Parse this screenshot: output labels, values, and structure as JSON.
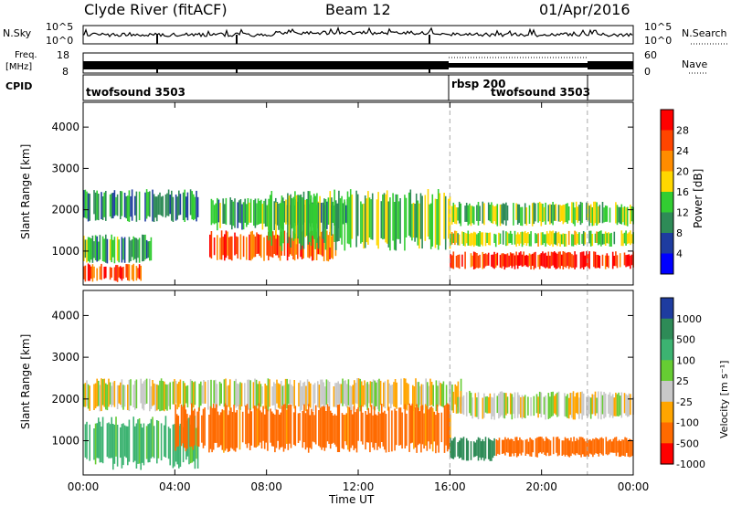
{
  "header": {
    "station": "Clyde River (fitACF)",
    "beam": "Beam 12",
    "date": "01/Apr/2016"
  },
  "panels": {
    "nsky": {
      "label": "N.Sky",
      "left_ticks": [
        "10^5",
        "10^0"
      ],
      "right_ticks": [
        "10^5",
        "10^0"
      ],
      "right_label": "N.Search"
    },
    "freq": {
      "label_line1": "Freq.",
      "label_line2": "[MHz]",
      "left_ticks": [
        "18",
        "8"
      ],
      "right_ticks": [
        "60",
        "0"
      ],
      "right_label": "Nave"
    },
    "cpid": {
      "label": "CPID",
      "modes": [
        "twofsound 3503",
        "rbsp 200",
        "twofsound 3503"
      ]
    }
  },
  "chart_data": [
    {
      "type": "heatmap",
      "title": "",
      "xlabel": "Time UT",
      "ylabel": "Slant Range [km]",
      "x_ticks": [
        "00:00",
        "04:00",
        "08:00",
        "12:00",
        "16:00",
        "20:00",
        "00:00"
      ],
      "xlim_hours": [
        0,
        24
      ],
      "y_ticks": [
        1000,
        2000,
        3000,
        4000
      ],
      "ylim_km": [
        180,
        4600
      ],
      "colorbar_label": "Power [dB]",
      "colorbar_ticks": [
        "28",
        "24",
        "20",
        "16",
        "12",
        "8",
        "4"
      ],
      "colors": [
        "#0000ff",
        "#1e3ca0",
        "#2e8b57",
        "#32cd32",
        "#ffd700",
        "#ff8c00",
        "#ff4500",
        "#ff0000"
      ],
      "mode_change_hours": [
        16,
        22
      ],
      "scatter_regions": [
        {
          "t0": 0.0,
          "t1": 5.0,
          "r0": 1700,
          "r1": 2500,
          "value": 10
        },
        {
          "t0": 0.0,
          "t1": 3.0,
          "r0": 700,
          "r1": 1400,
          "value": 12
        },
        {
          "t0": 0.0,
          "t1": 2.5,
          "r0": 250,
          "r1": 700,
          "value": 27
        },
        {
          "t0": 5.5,
          "t1": 11.5,
          "r0": 1500,
          "r1": 2300,
          "value": 12
        },
        {
          "t0": 5.5,
          "t1": 11.0,
          "r0": 750,
          "r1": 1500,
          "value": 25
        },
        {
          "t0": 8.0,
          "t1": 16.0,
          "r0": 1000,
          "r1": 2500,
          "value": 14
        },
        {
          "t0": 16.0,
          "t1": 24.0,
          "r0": 1600,
          "r1": 2200,
          "value": 14
        },
        {
          "t0": 16.0,
          "t1": 24.0,
          "r0": 1100,
          "r1": 1500,
          "value": 16
        },
        {
          "t0": 16.0,
          "t1": 24.0,
          "r0": 550,
          "r1": 1000,
          "value": 28
        }
      ]
    },
    {
      "type": "heatmap",
      "title": "",
      "xlabel": "Time UT",
      "ylabel": "Slant Range [km]",
      "x_ticks": [
        "00:00",
        "04:00",
        "08:00",
        "12:00",
        "16:00",
        "20:00",
        "00:00"
      ],
      "xlim_hours": [
        0,
        24
      ],
      "y_ticks": [
        1000,
        2000,
        3000,
        4000
      ],
      "ylim_km": [
        180,
        4600
      ],
      "colorbar_label": "Velocity [m s⁻¹]",
      "colorbar_ticks": [
        "1000",
        "500",
        "100",
        "25",
        "-25",
        "-100",
        "-500",
        "-1000"
      ],
      "colors": [
        "#1e3ca0",
        "#2e8b57",
        "#3cb371",
        "#66cc33",
        "#c8c8c8",
        "#ffa500",
        "#ff6a00",
        "#ff0000"
      ],
      "mode_change_hours": [
        16,
        22
      ],
      "scatter_regions": [
        {
          "t0": 0.0,
          "t1": 16.5,
          "r0": 1700,
          "r1": 2500,
          "value": 0
        },
        {
          "t0": 0.0,
          "t1": 5.0,
          "r0": 300,
          "r1": 1600,
          "value": 150
        },
        {
          "t0": 4.0,
          "t1": 16.0,
          "r0": 700,
          "r1": 1900,
          "value": -150
        },
        {
          "t0": 16.0,
          "t1": 24.0,
          "r0": 1500,
          "r1": 2200,
          "value": 0
        },
        {
          "t0": 16.0,
          "t1": 18.0,
          "r0": 500,
          "r1": 1100,
          "value": 800
        },
        {
          "t0": 18.0,
          "t1": 24.0,
          "r0": 600,
          "r1": 1100,
          "value": -250
        }
      ]
    }
  ]
}
